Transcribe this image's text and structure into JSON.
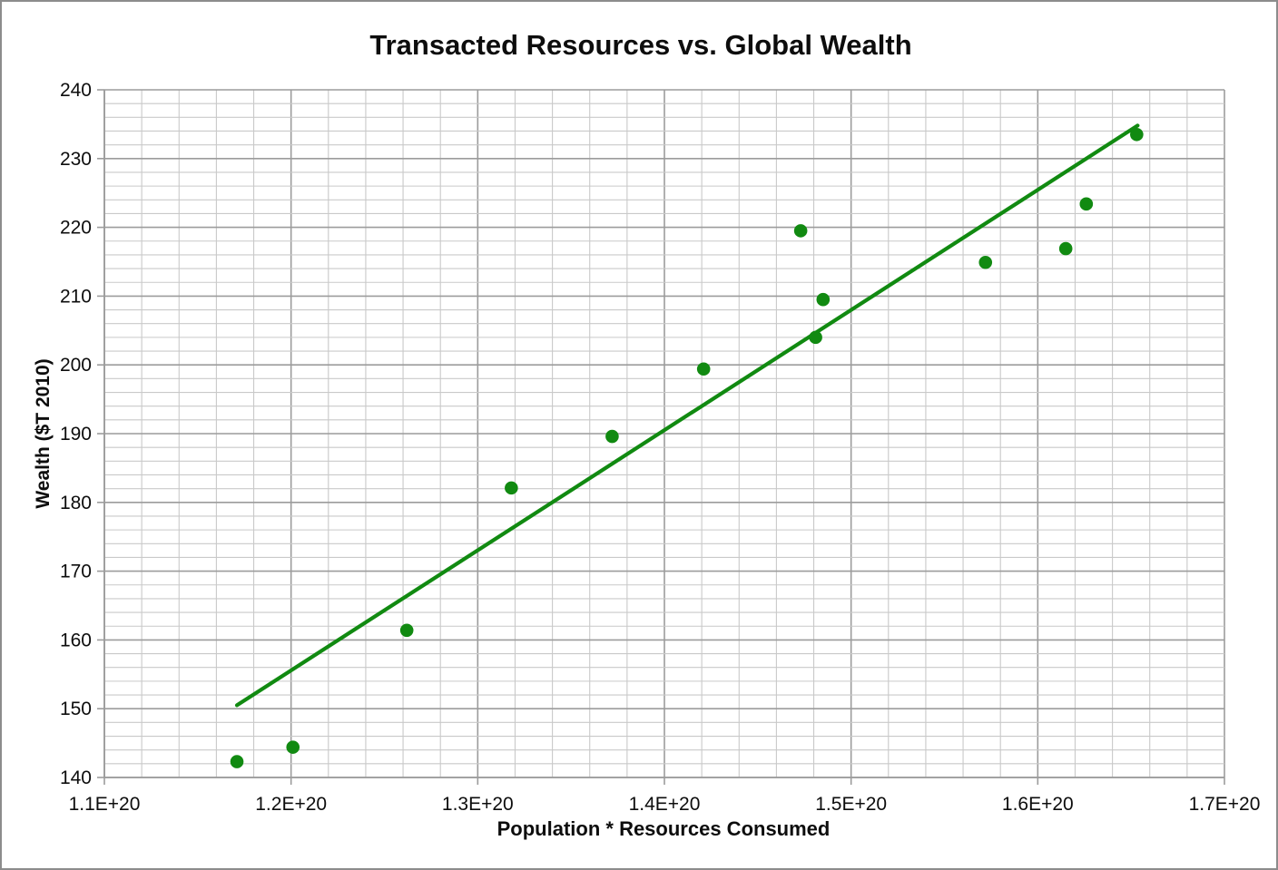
{
  "frame": {
    "border_color": "#8c8c8c",
    "background_color": "#ffffff"
  },
  "colors": {
    "series_green": "#118a11",
    "minor_grid": "#c9c9c9",
    "major_grid": "#9c9c9c",
    "axis_line": "#9c9c9c",
    "text": "#0d0d0d"
  },
  "chart_data": {
    "type": "scatter",
    "title": "Transacted Resources vs. Global Wealth",
    "xlabel": "Population * Resources Consumed",
    "ylabel": "Wealth ($T 2010)",
    "xlim": [
      1.1e+20,
      1.7e+20
    ],
    "ylim": [
      140,
      240
    ],
    "x_major_step": 1e+19,
    "x_minor_step": 2e+18,
    "y_major_step": 10,
    "y_minor_step": 2,
    "grid": true,
    "legend_position": "none",
    "x_tick_labels": [
      "1.1E+20",
      "1.2E+20",
      "1.3E+20",
      "1.4E+20",
      "1.5E+20",
      "1.6E+20",
      "1.7E+20"
    ],
    "y_tick_labels": [
      "140",
      "150",
      "160",
      "170",
      "180",
      "190",
      "200",
      "210",
      "220",
      "230",
      "240"
    ],
    "series": [
      {
        "marker": "circle",
        "marker_color": "#118a11",
        "points": [
          {
            "x": 1.171e+20,
            "y": 142.3
          },
          {
            "x": 1.201e+20,
            "y": 144.4
          },
          {
            "x": 1.262e+20,
            "y": 161.4
          },
          {
            "x": 1.318e+20,
            "y": 182.1
          },
          {
            "x": 1.372e+20,
            "y": 189.6
          },
          {
            "x": 1.421e+20,
            "y": 199.4
          },
          {
            "x": 1.473e+20,
            "y": 219.5
          },
          {
            "x": 1.481e+20,
            "y": 204.0
          },
          {
            "x": 1.485e+20,
            "y": 209.5
          },
          {
            "x": 1.572e+20,
            "y": 214.9
          },
          {
            "x": 1.615e+20,
            "y": 216.9
          },
          {
            "x": 1.626e+20,
            "y": 223.4
          },
          {
            "x": 1.653e+20,
            "y": 233.5
          }
        ]
      }
    ],
    "trendline": {
      "color": "#118a11",
      "x1": 1.171e+20,
      "y1": 150.5,
      "x2": 1.6535e+20,
      "y2": 234.8
    }
  }
}
